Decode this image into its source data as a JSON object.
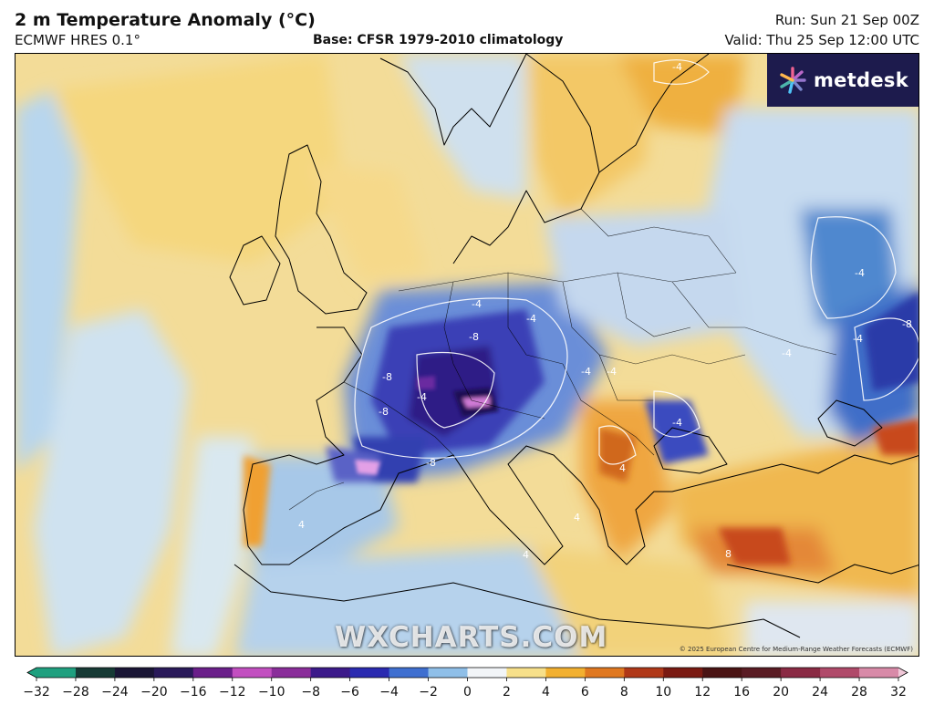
{
  "header": {
    "title": "2 m Temperature Anomaly (°C)",
    "model": "ECMWF HRES 0.1°",
    "base": "Base: CFSR 1979-2010 climatology",
    "run": "Run: Sun 21 Sep 00Z",
    "valid": "Valid: Thu 25 Sep 12:00 UTC"
  },
  "branding": {
    "logo_text": "metdesk",
    "watermark": "WXCHARTS.COM",
    "copyright": "© 2025 European Centre for Medium-Range Weather Forecasts (ECMWF)"
  },
  "map": {
    "contour_labels": [
      "-4",
      "-8",
      "-4",
      "-8",
      "-4",
      "-8",
      "-4",
      "-4",
      "-4",
      "-4",
      "-8",
      "4",
      "4",
      "4",
      "8",
      "-4",
      "-8",
      "-4",
      "-4",
      "4"
    ]
  },
  "scale": {
    "ticks": [
      "−32",
      "−28",
      "−24",
      "−20",
      "−16",
      "−12",
      "−10",
      "−8",
      "−6",
      "−4",
      "−2",
      "0",
      "2",
      "4",
      "6",
      "8",
      "10",
      "12",
      "16",
      "20",
      "24",
      "28",
      "32"
    ],
    "colors": [
      "#1fa07f",
      "#173b36",
      "#1a1636",
      "#2a1a5a",
      "#6b1f8a",
      "#c24fc0",
      "#8a2d9a",
      "#3c1a8a",
      "#2a2ab0",
      "#3f6fd0",
      "#8fbfe8",
      "#f2f5f8",
      "#f7e08a",
      "#f2b030",
      "#e07820",
      "#b03818",
      "#7a1a12",
      "#4a1414",
      "#5a1c24",
      "#8a2a44",
      "#b04a6a",
      "#d88aa8",
      "#f0c8d8"
    ]
  }
}
